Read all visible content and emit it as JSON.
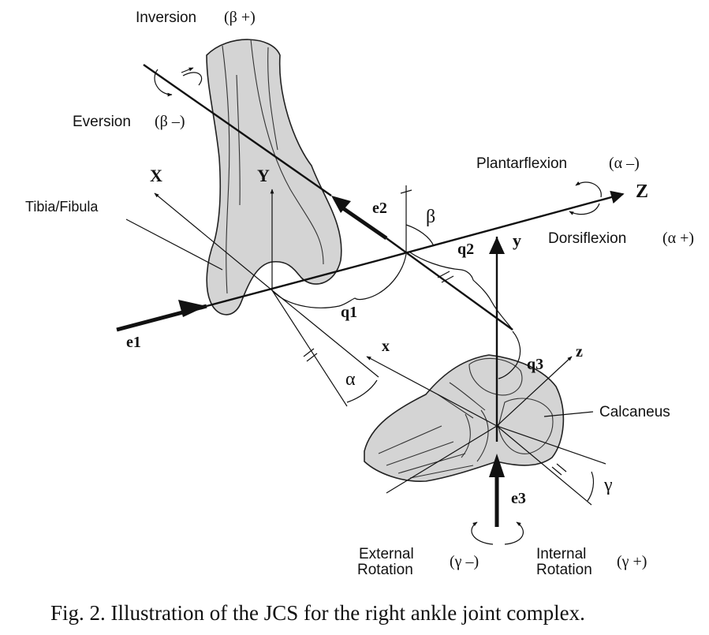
{
  "caption": "Fig. 2.  Illustration of the JCS for the right ankle joint complex.",
  "labels": {
    "inversion": "Inversion",
    "inversion_sign": "(β +)",
    "eversion": "Eversion",
    "eversion_sign": "(β –)",
    "plantarflexion": "Plantarflexion",
    "plantarflexion_sign": "(α –)",
    "dorsiflexion": "Dorsiflexion",
    "dorsiflexion_sign": "(α +)",
    "tibia_fibula": "Tibia/Fibula",
    "calcaneus": "Calcaneus",
    "external_rotation_1": "External",
    "external_rotation_2": "Rotation",
    "external_sign": "(γ –)",
    "internal_rotation_1": "Internal",
    "internal_rotation_2": "Rotation",
    "internal_sign": "(γ +)"
  },
  "axes": {
    "X": "X",
    "Y": "Y",
    "Z": "Z",
    "x": "x",
    "y": "y",
    "z": "z",
    "e1": "e1",
    "e2": "e2",
    "e3": "e3",
    "q1": "q1",
    "q2": "q2",
    "q3": "q3"
  },
  "angles": {
    "alpha": "α",
    "beta": "β",
    "gamma": "γ"
  }
}
